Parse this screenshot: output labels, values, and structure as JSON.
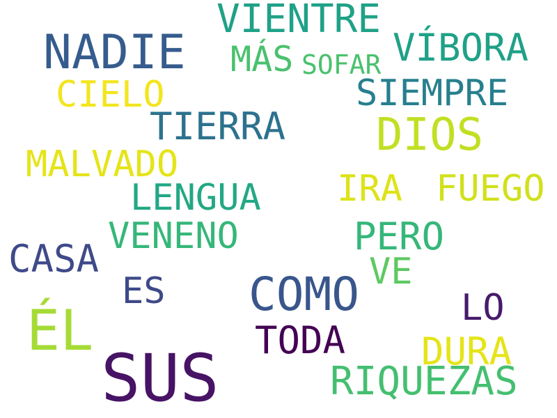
{
  "cloud": {
    "words": [
      {
        "key": "vientre",
        "text": "VIENTRE",
        "color": "#1fa187"
      },
      {
        "key": "nadie",
        "text": "NADIE",
        "color": "#365c8d"
      },
      {
        "key": "mas",
        "text": "MÁS",
        "color": "#4ac16d"
      },
      {
        "key": "sofar",
        "text": "SOFAR",
        "color": "#4ac16d"
      },
      {
        "key": "vibora",
        "text": "VÍBORA",
        "color": "#1fa187"
      },
      {
        "key": "cielo",
        "text": "CIELO",
        "color": "#f3e51e"
      },
      {
        "key": "siempre",
        "text": "SIEMPRE",
        "color": "#277f8e"
      },
      {
        "key": "tierra",
        "text": "TIERRA",
        "color": "#2c728e"
      },
      {
        "key": "dios",
        "text": "DIOS",
        "color": "#c2df23"
      },
      {
        "key": "malvado",
        "text": "MALVADO",
        "color": "#e5e419"
      },
      {
        "key": "lengua",
        "text": "LENGUA",
        "color": "#22a884"
      },
      {
        "key": "ira",
        "text": "IRA",
        "color": "#dde318"
      },
      {
        "key": "fuego",
        "text": "FUEGO",
        "color": "#d0e11c"
      },
      {
        "key": "veneno",
        "text": "VENENO",
        "color": "#35b779"
      },
      {
        "key": "pero",
        "text": "PERO",
        "color": "#35b779"
      },
      {
        "key": "casa",
        "text": "CASA",
        "color": "#3e4a89"
      },
      {
        "key": "ve",
        "text": "VE",
        "color": "#5ec962"
      },
      {
        "key": "es",
        "text": "ES",
        "color": "#3e4989"
      },
      {
        "key": "como",
        "text": "COMO",
        "color": "#39568c"
      },
      {
        "key": "lo",
        "text": "LO",
        "color": "#481a6c"
      },
      {
        "key": "el",
        "text": "ÉL",
        "color": "#a5db36"
      },
      {
        "key": "toda",
        "text": "TODA",
        "color": "#440154"
      },
      {
        "key": "dura",
        "text": "DURA",
        "color": "#e5e419"
      },
      {
        "key": "sus",
        "text": "SUS",
        "color": "#471365"
      },
      {
        "key": "riquezas",
        "text": "RIQUEZAS",
        "color": "#44bf70"
      }
    ]
  }
}
